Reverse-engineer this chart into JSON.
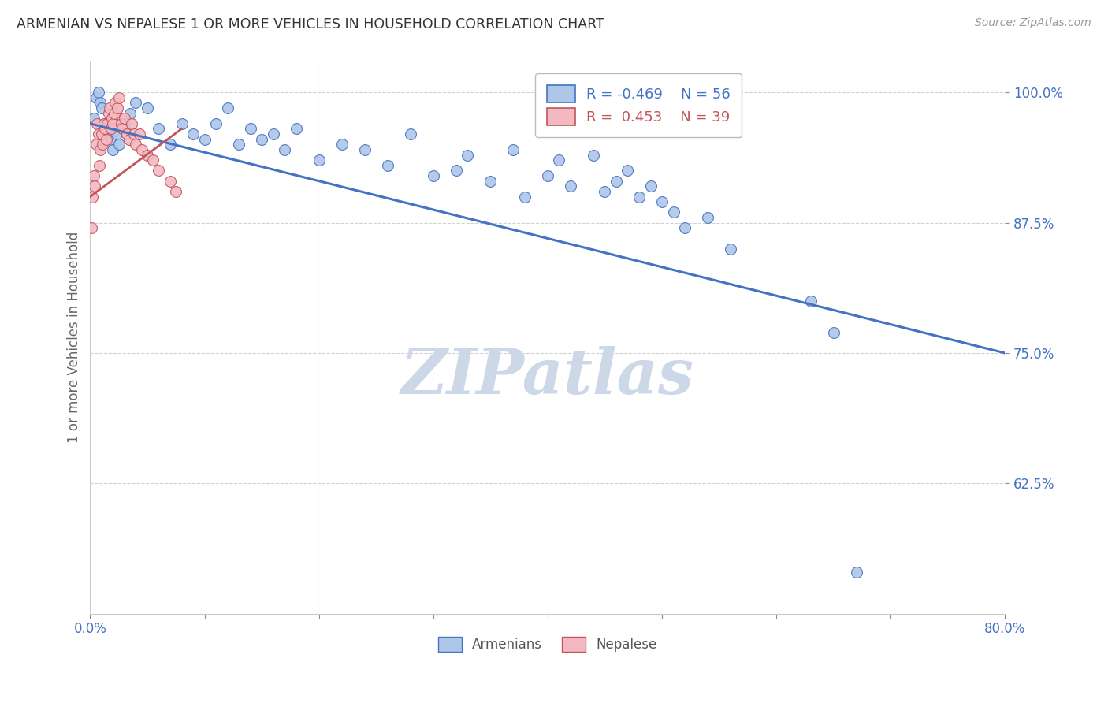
{
  "title": "ARMENIAN VS NEPALESE 1 OR MORE VEHICLES IN HOUSEHOLD CORRELATION CHART",
  "source": "Source: ZipAtlas.com",
  "ylabel": "1 or more Vehicles in Household",
  "xlim": [
    0.0,
    80.0
  ],
  "ylim": [
    50.0,
    103.0
  ],
  "yticks": [
    62.5,
    75.0,
    87.5,
    100.0
  ],
  "xticks": [
    0.0,
    10.0,
    20.0,
    30.0,
    40.0,
    50.0,
    60.0,
    70.0,
    80.0
  ],
  "armenian_color": "#aec6e8",
  "nepalese_color": "#f4b8c1",
  "trend_armenian_color": "#4472c4",
  "trend_nepalese_color": "#c0555a",
  "legend_R_armenian": "R = -0.469",
  "legend_N_armenian": "N = 56",
  "legend_R_nepalese": "R =  0.453",
  "legend_N_nepalese": "N = 39",
  "armenian_x": [
    0.3,
    0.5,
    0.7,
    0.9,
    1.0,
    1.2,
    1.5,
    1.8,
    2.0,
    2.3,
    2.5,
    3.0,
    3.5,
    4.0,
    5.0,
    6.0,
    7.0,
    8.0,
    9.0,
    10.0,
    11.0,
    12.0,
    13.0,
    14.0,
    15.0,
    16.0,
    17.0,
    18.0,
    20.0,
    22.0,
    24.0,
    26.0,
    28.0,
    30.0,
    32.0,
    33.0,
    35.0,
    37.0,
    38.0,
    40.0,
    41.0,
    42.0,
    44.0,
    45.0,
    46.0,
    47.0,
    48.0,
    49.0,
    50.0,
    51.0,
    52.0,
    54.0,
    56.0,
    63.0,
    65.0,
    67.0
  ],
  "armenian_y": [
    97.5,
    99.5,
    100.0,
    99.0,
    98.5,
    97.0,
    96.0,
    95.5,
    94.5,
    96.0,
    95.0,
    97.0,
    98.0,
    99.0,
    98.5,
    96.5,
    95.0,
    97.0,
    96.0,
    95.5,
    97.0,
    98.5,
    95.0,
    96.5,
    95.5,
    96.0,
    94.5,
    96.5,
    93.5,
    95.0,
    94.5,
    93.0,
    96.0,
    92.0,
    92.5,
    94.0,
    91.5,
    94.5,
    90.0,
    92.0,
    93.5,
    91.0,
    94.0,
    90.5,
    91.5,
    92.5,
    90.0,
    91.0,
    89.5,
    88.5,
    87.0,
    88.0,
    85.0,
    80.0,
    77.0,
    54.0
  ],
  "nepalese_x": [
    0.1,
    0.2,
    0.3,
    0.4,
    0.5,
    0.6,
    0.7,
    0.8,
    0.9,
    1.0,
    1.1,
    1.2,
    1.3,
    1.4,
    1.5,
    1.6,
    1.7,
    1.8,
    1.9,
    2.0,
    2.1,
    2.2,
    2.4,
    2.5,
    2.7,
    2.8,
    3.0,
    3.2,
    3.4,
    3.6,
    3.8,
    4.0,
    4.3,
    4.5,
    5.0,
    5.5,
    6.0,
    7.0,
    7.5
  ],
  "nepalese_y": [
    87.0,
    90.0,
    92.0,
    91.0,
    95.0,
    97.0,
    96.0,
    93.0,
    94.5,
    96.0,
    95.0,
    97.0,
    96.5,
    95.5,
    97.0,
    98.0,
    98.5,
    96.5,
    97.5,
    97.0,
    98.0,
    99.0,
    98.5,
    99.5,
    97.0,
    96.5,
    97.5,
    96.0,
    95.5,
    97.0,
    96.0,
    95.0,
    96.0,
    94.5,
    94.0,
    93.5,
    92.5,
    91.5,
    90.5
  ],
  "background_color": "#ffffff",
  "grid_color": "#cccccc",
  "tick_color": "#4472c4",
  "title_color": "#333333",
  "watermark_text": "ZIPatlas",
  "watermark_color": "#ccd8e8",
  "marker_size": 100
}
